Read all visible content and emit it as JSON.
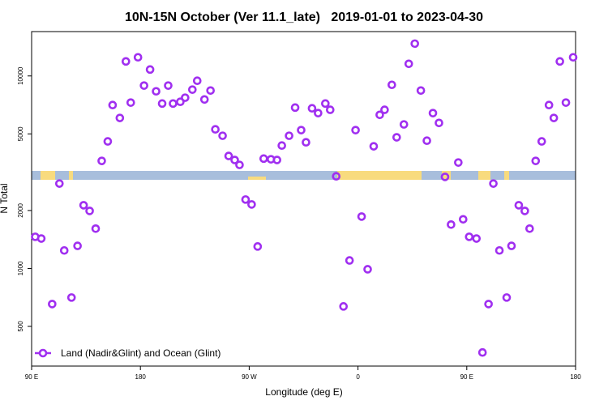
{
  "chart_data": {
    "type": "scatter",
    "title": "10N-15N October (Ver 11.1_late)   2019-01-01 to 2023-04-30",
    "xlabel": "Longitude (deg E)",
    "ylabel": "N Total",
    "xlim": [
      90,
      540
    ],
    "xticks": [
      {
        "value": 90,
        "label": "90 E"
      },
      180,
      {
        "value": 270,
        "label": "90 W"
      },
      {
        "value": 360,
        "label": "0"
      },
      {
        "value": 450,
        "label": "90 E"
      },
      {
        "value": 540,
        "label": "180"
      }
    ],
    "ylim": [
      311,
      17000
    ],
    "yscale": "log",
    "yticks": [
      500,
      1000,
      2000,
      5000,
      10000
    ],
    "legend": "bottom-left",
    "series": [
      {
        "name": "Land (Nadir&Glint) and Ocean (Glint)",
        "color": "#a02ff0",
        "x": [
          93,
          98,
          107,
          113,
          117,
          123,
          128,
          133,
          138,
          143,
          148,
          153,
          157,
          163,
          168,
          172,
          178,
          183,
          188,
          193,
          198,
          203,
          207,
          213,
          217,
          223,
          227,
          233,
          238,
          242,
          248,
          253,
          258,
          262,
          267,
          272,
          277,
          282,
          288,
          293,
          297,
          303,
          308,
          313,
          317,
          322,
          327,
          333,
          337,
          342,
          348,
          353,
          358,
          363,
          368,
          373,
          378,
          382,
          388,
          392,
          398,
          402,
          407,
          412,
          417,
          422,
          427,
          432,
          437,
          443,
          447,
          452,
          458,
          463,
          468,
          472,
          477,
          483,
          487,
          493,
          498,
          502,
          507,
          512,
          518,
          522,
          527,
          532,
          538
        ],
        "values": [
          1460,
          1430,
          653,
          2760,
          1240,
          706,
          1310,
          2130,
          1990,
          1610,
          3620,
          4570,
          7060,
          6050,
          11900,
          7270,
          12500,
          8910,
          10800,
          8320,
          7190,
          8910,
          7190,
          7340,
          7710,
          8490,
          9440,
          7550,
          8400,
          5280,
          4890,
          3840,
          3660,
          3450,
          2280,
          2150,
          1300,
          3720,
          3690,
          3660,
          4350,
          4890,
          6850,
          5230,
          4520,
          6790,
          6410,
          7190,
          6670,
          3010,
          635,
          1100,
          5230,
          1860,
          990,
          4310,
          6280,
          6670,
          8990,
          4800,
          5600,
          11560,
          14720,
          8400,
          4610,
          6410,
          5700,
          2990,
          1690,
          3550,
          1800,
          1460,
          1430,
          366,
          653,
          2760,
          1240,
          706,
          1310,
          2130,
          1990,
          1610,
          3620,
          4570,
          7060,
          6050,
          11900,
          7270,
          12500
        ]
      }
    ]
  }
}
